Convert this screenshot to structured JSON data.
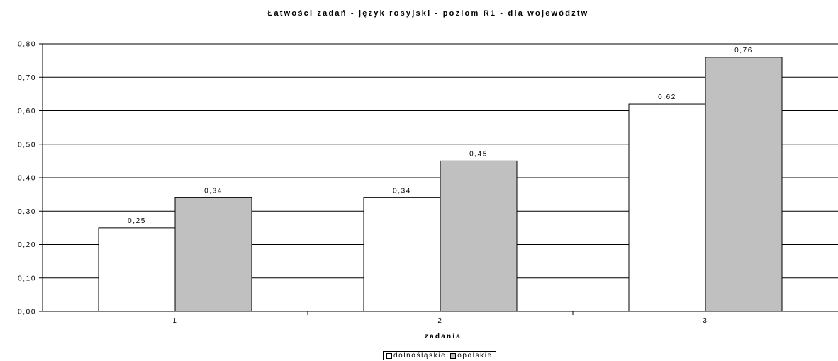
{
  "chart_data": {
    "type": "bar",
    "title": "Łatwości zadań - język rosyjski - poziom R1 - dla województw",
    "xlabel": "zadania",
    "ylabel": "",
    "categories": [
      "1",
      "2",
      "3"
    ],
    "series": [
      {
        "name": "dolnośląskie",
        "values": [
          0.25,
          0.34,
          0.62
        ],
        "value_labels": [
          "0,25",
          "0,34",
          "0,62"
        ],
        "color": "#ffffff"
      },
      {
        "name": "opolskie",
        "values": [
          0.34,
          0.45,
          0.76
        ],
        "value_labels": [
          "0,34",
          "0,45",
          "0,76"
        ],
        "color": "#c0c0c0"
      }
    ],
    "ylim": [
      0,
      0.8
    ],
    "yticks": [
      0,
      0.1,
      0.2,
      0.3,
      0.4,
      0.5,
      0.6,
      0.7,
      0.8
    ],
    "ytick_labels": [
      "0,00",
      "0,10",
      "0,20",
      "0,30",
      "0,40",
      "0,50",
      "0,60",
      "0,70",
      "0,80"
    ],
    "grid": true,
    "legend_position": "bottom"
  }
}
